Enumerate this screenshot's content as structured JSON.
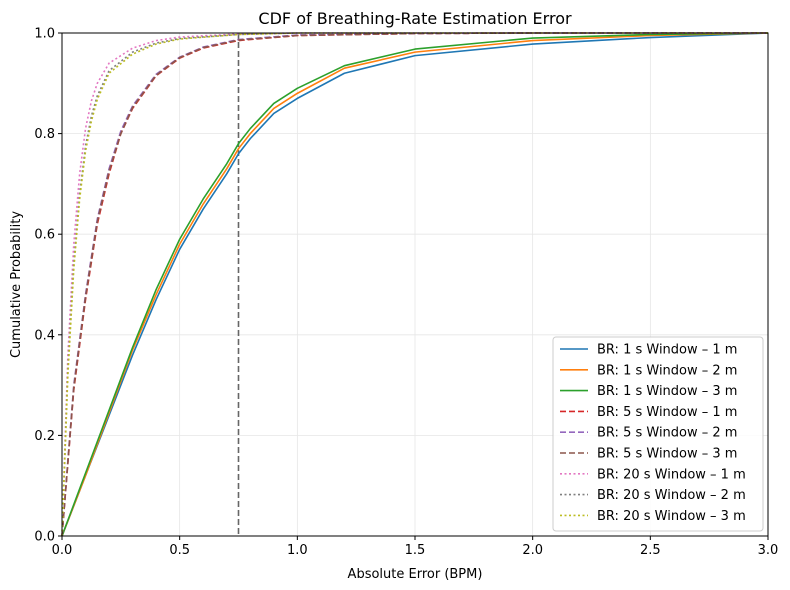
{
  "chart_data": {
    "type": "line",
    "title": "CDF of Breathing-Rate Estimation Error",
    "xlabel": "Absolute Error (BPM)",
    "ylabel": "Cumulative Probability",
    "xlim": [
      0,
      3
    ],
    "ylim": [
      0,
      1
    ],
    "x_ticks": [
      0,
      0.5,
      1,
      1.5,
      2,
      2.5,
      3
    ],
    "x_tick_labels": [
      "0.0",
      "0.5",
      "1.0",
      "1.5",
      "2.0",
      "2.5",
      "3.0"
    ],
    "y_ticks": [
      0,
      0.2,
      0.4,
      0.6,
      0.8,
      1
    ],
    "y_tick_labels": [
      "0.0",
      "0.2",
      "0.4",
      "0.6",
      "0.8",
      "1.0"
    ],
    "grid": true,
    "legend_position": "bottom-right",
    "reference_line": {
      "x": 0.75,
      "color": "#666666",
      "style": "dashed"
    },
    "series": [
      {
        "name": "BR: 1 s Window – 1 m",
        "color": "#1f77b4",
        "style": "solid",
        "x": [
          0,
          0.1,
          0.2,
          0.3,
          0.4,
          0.5,
          0.6,
          0.7,
          0.75,
          0.8,
          0.9,
          1.0,
          1.2,
          1.5,
          2.0,
          2.5,
          3.0
        ],
        "y": [
          0,
          0.12,
          0.24,
          0.36,
          0.47,
          0.57,
          0.65,
          0.72,
          0.76,
          0.79,
          0.84,
          0.87,
          0.92,
          0.955,
          0.978,
          0.991,
          1.0
        ]
      },
      {
        "name": "BR: 1 s Window – 2 m",
        "color": "#ff7f0e",
        "style": "solid",
        "x": [
          0,
          0.1,
          0.2,
          0.3,
          0.4,
          0.5,
          0.6,
          0.7,
          0.75,
          0.8,
          0.9,
          1.0,
          1.2,
          1.5,
          2.0,
          2.5,
          3.0
        ],
        "y": [
          0,
          0.12,
          0.245,
          0.37,
          0.48,
          0.58,
          0.66,
          0.73,
          0.77,
          0.8,
          0.85,
          0.88,
          0.93,
          0.962,
          0.985,
          0.995,
          1.0
        ]
      },
      {
        "name": "BR: 1 s Window – 3 m",
        "color": "#2ca02c",
        "style": "solid",
        "x": [
          0,
          0.1,
          0.2,
          0.3,
          0.4,
          0.5,
          0.6,
          0.7,
          0.75,
          0.8,
          0.9,
          1.0,
          1.2,
          1.5,
          2.0,
          2.5,
          3.0
        ],
        "y": [
          0,
          0.125,
          0.25,
          0.375,
          0.49,
          0.59,
          0.67,
          0.74,
          0.78,
          0.81,
          0.86,
          0.89,
          0.935,
          0.968,
          0.99,
          0.997,
          1.0
        ]
      },
      {
        "name": "BR: 5 s Window – 1 m",
        "color": "#d62728",
        "style": "dashed",
        "x": [
          0,
          0.05,
          0.1,
          0.15,
          0.2,
          0.25,
          0.3,
          0.4,
          0.5,
          0.6,
          0.75,
          1.0,
          1.5,
          2.0,
          3.0
        ],
        "y": [
          0,
          0.29,
          0.47,
          0.62,
          0.72,
          0.8,
          0.85,
          0.915,
          0.95,
          0.97,
          0.985,
          0.995,
          0.999,
          1.0,
          1.0
        ]
      },
      {
        "name": "BR: 5 s Window – 2 m",
        "color": "#9467bd",
        "style": "dashed",
        "x": [
          0,
          0.05,
          0.1,
          0.15,
          0.2,
          0.25,
          0.3,
          0.4,
          0.5,
          0.6,
          0.75,
          1.0,
          1.5,
          2.0,
          3.0
        ],
        "y": [
          0,
          0.3,
          0.48,
          0.63,
          0.73,
          0.805,
          0.855,
          0.918,
          0.952,
          0.972,
          0.987,
          0.996,
          0.999,
          1.0,
          1.0
        ]
      },
      {
        "name": "BR: 5 s Window – 3 m",
        "color": "#8c564b",
        "style": "dashed",
        "x": [
          0,
          0.05,
          0.1,
          0.15,
          0.2,
          0.25,
          0.3,
          0.4,
          0.5,
          0.6,
          0.75,
          1.0,
          1.5,
          2.0,
          3.0
        ],
        "y": [
          0,
          0.295,
          0.475,
          0.625,
          0.725,
          0.8,
          0.852,
          0.916,
          0.951,
          0.971,
          0.986,
          0.995,
          0.999,
          1.0,
          1.0
        ]
      },
      {
        "name": "BR: 20 s Window – 1 m",
        "color": "#e377c2",
        "style": "dotted",
        "x": [
          0,
          0.025,
          0.05,
          0.075,
          0.1,
          0.125,
          0.15,
          0.2,
          0.3,
          0.4,
          0.5,
          0.75,
          1.0,
          1.5,
          3.0
        ],
        "y": [
          0,
          0.36,
          0.58,
          0.72,
          0.81,
          0.865,
          0.9,
          0.94,
          0.97,
          0.985,
          0.992,
          0.998,
          1.0,
          1.0,
          1.0
        ]
      },
      {
        "name": "BR: 20 s Window – 2 m",
        "color": "#7f7f7f",
        "style": "dotted",
        "x": [
          0,
          0.025,
          0.05,
          0.075,
          0.1,
          0.125,
          0.15,
          0.2,
          0.3,
          0.4,
          0.5,
          0.75,
          1.0,
          1.5,
          3.0
        ],
        "y": [
          0,
          0.33,
          0.54,
          0.68,
          0.775,
          0.835,
          0.875,
          0.925,
          0.962,
          0.98,
          0.989,
          0.997,
          1.0,
          1.0,
          1.0
        ]
      },
      {
        "name": "BR: 20 s Window – 3 m",
        "color": "#bcbd22",
        "style": "dotted",
        "x": [
          0,
          0.025,
          0.05,
          0.075,
          0.1,
          0.125,
          0.15,
          0.2,
          0.3,
          0.4,
          0.5,
          0.75,
          1.0,
          1.5,
          3.0
        ],
        "y": [
          0,
          0.32,
          0.53,
          0.67,
          0.765,
          0.825,
          0.868,
          0.92,
          0.958,
          0.978,
          0.988,
          0.997,
          1.0,
          1.0,
          1.0
        ]
      }
    ]
  }
}
